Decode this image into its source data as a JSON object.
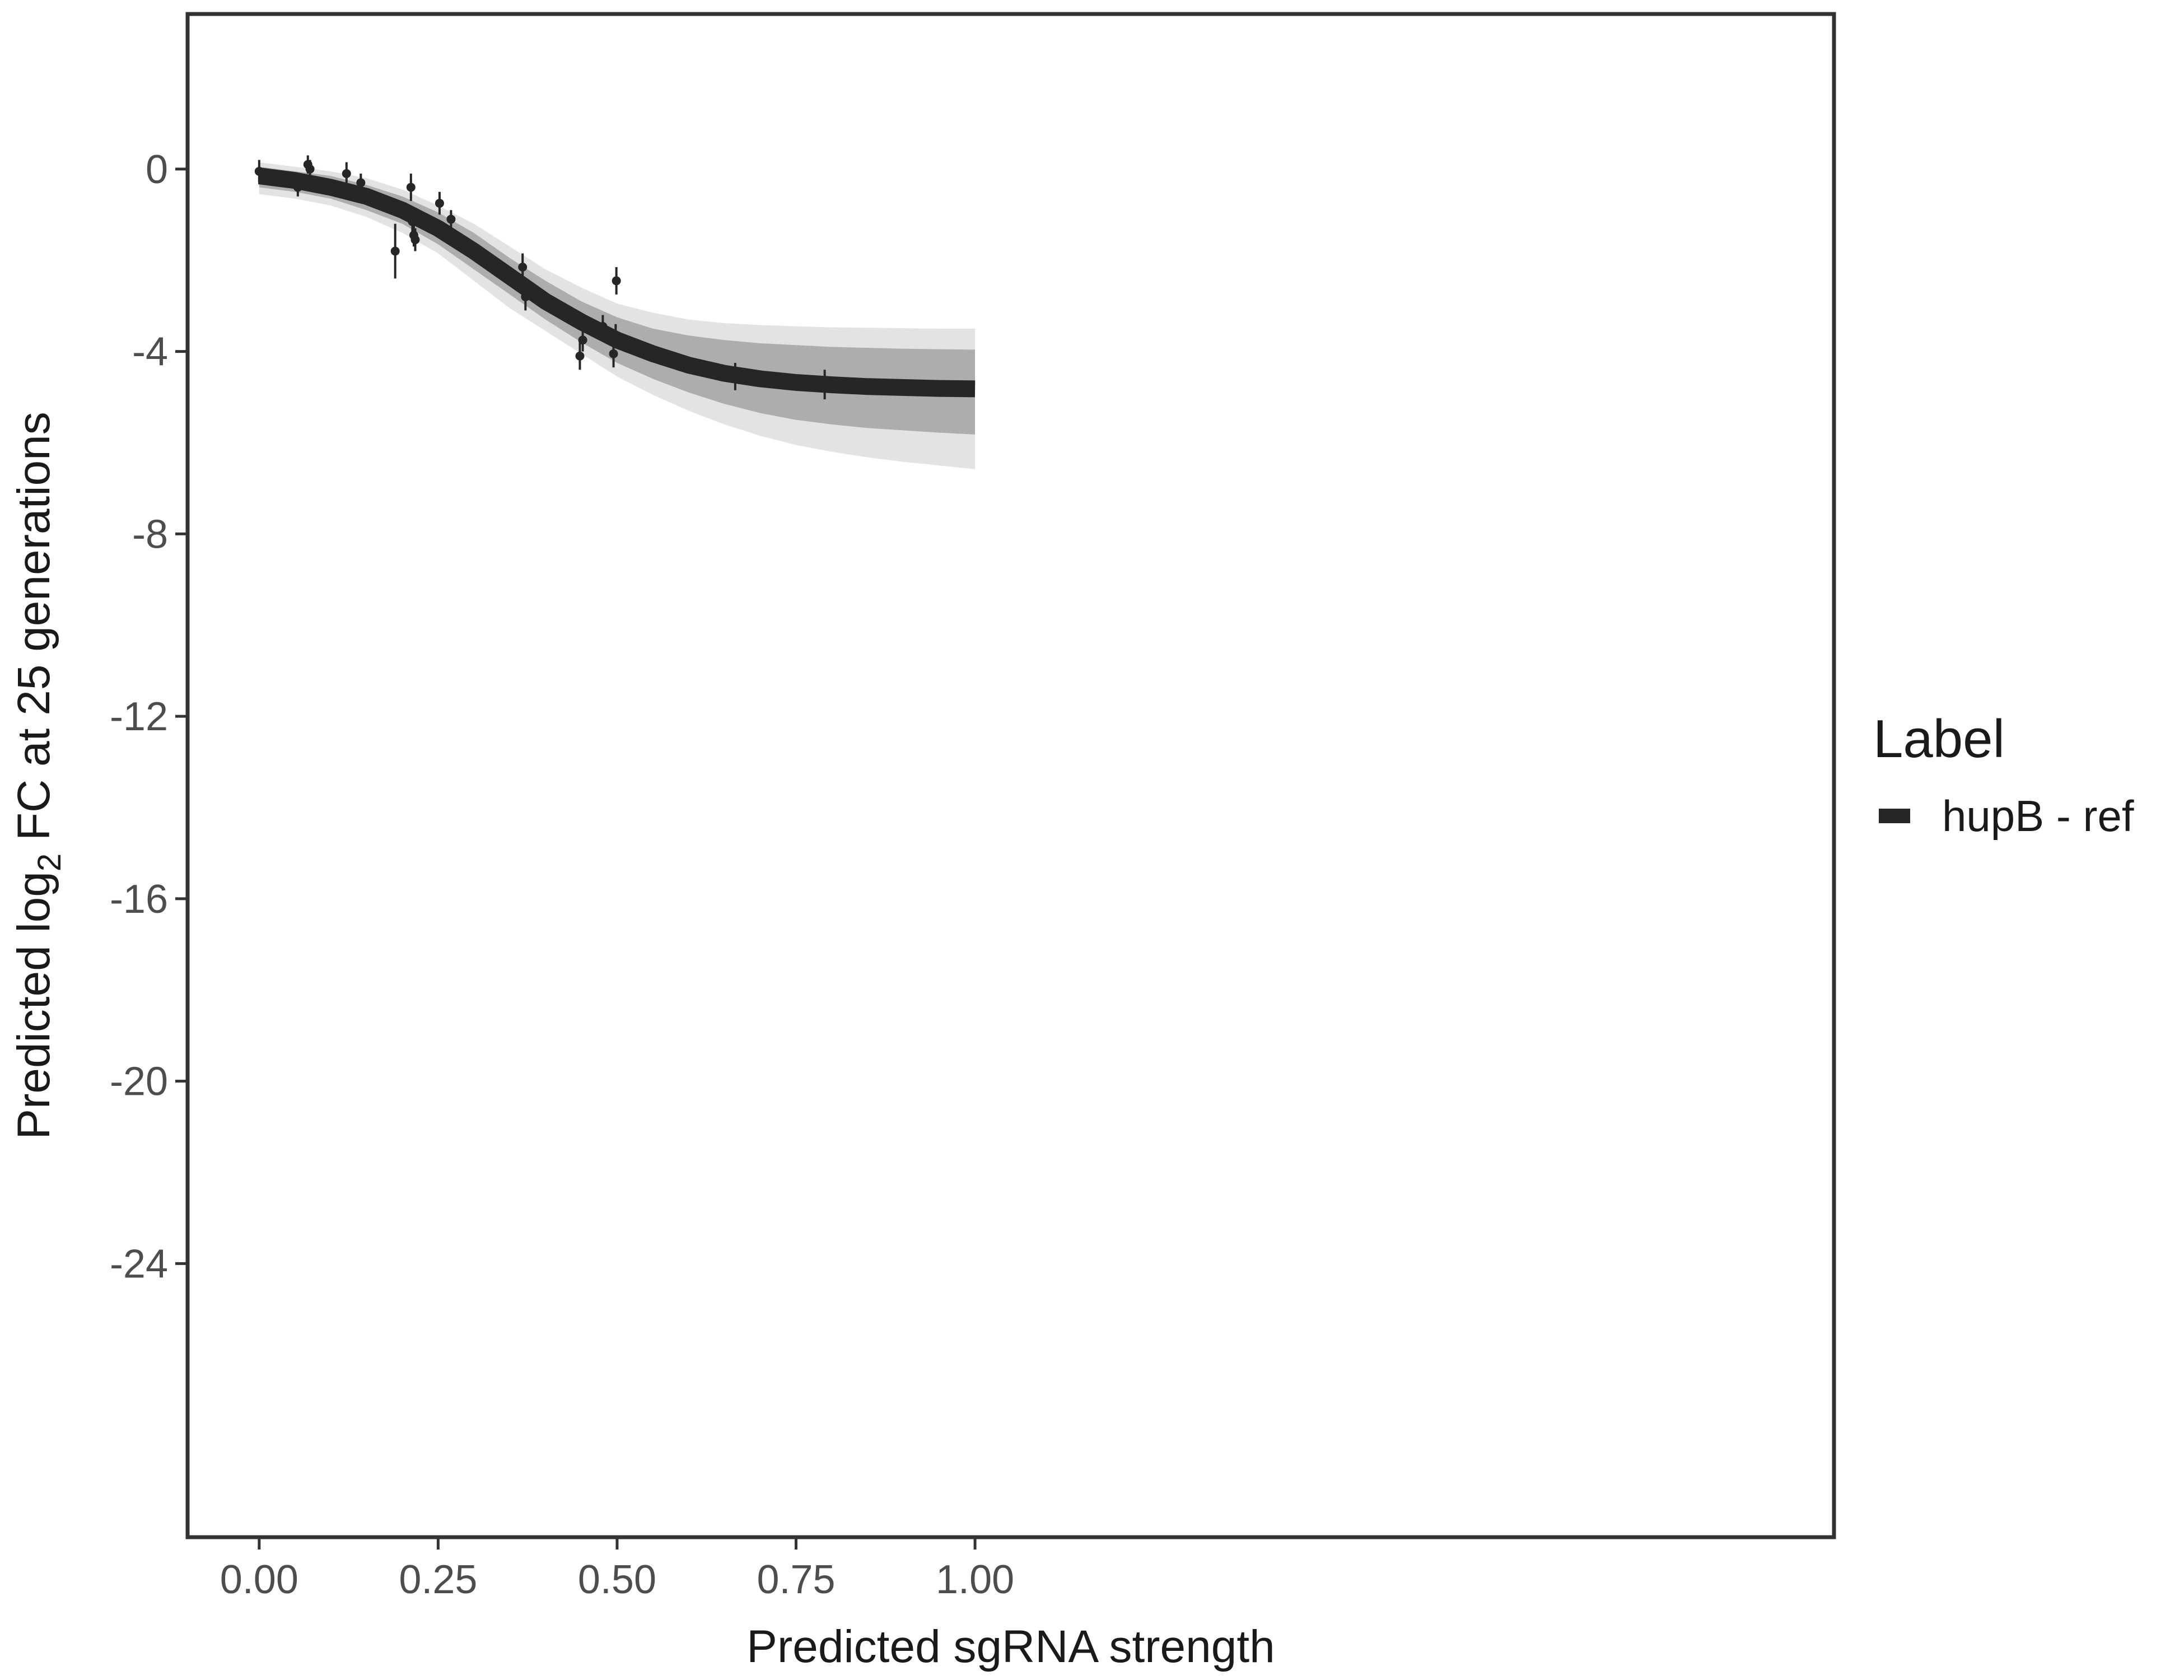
{
  "chart_data": {
    "type": "line",
    "title": "",
    "xlabel": "Predicted sgRNA strength",
    "ylabel_prefix": "Predicted  log",
    "ylabel_subscript": "2",
    "ylabel_suffix": " FC at 25 generations",
    "xlim": [
      -0.1,
      2.2
    ],
    "ylim": [
      -30.0,
      3.4
    ],
    "x_ticks": [
      0.0,
      0.25,
      0.5,
      0.75,
      1.0
    ],
    "x_tick_labels": [
      "0.00",
      "0.25",
      "0.50",
      "0.75",
      "1.00"
    ],
    "y_ticks": [
      0,
      -4,
      -8,
      -12,
      -16,
      -20,
      -24
    ],
    "y_tick_labels": [
      "0",
      "-4",
      "-8",
      "-12",
      "-16",
      "-20",
      "-24"
    ],
    "grid": false,
    "legend": {
      "title": "Label",
      "placement": "right",
      "entries": [
        {
          "label": "hupB - ref",
          "color": "#262626"
        }
      ]
    },
    "series": [
      {
        "name": "hupB - ref",
        "color": "#262626",
        "x": [
          0.0,
          0.05,
          0.1,
          0.15,
          0.2,
          0.25,
          0.3,
          0.35,
          0.4,
          0.45,
          0.5,
          0.55,
          0.6,
          0.65,
          0.7,
          0.75,
          0.8,
          0.85,
          0.9,
          0.95,
          1.0
        ],
        "y": [
          -0.15,
          -0.25,
          -0.4,
          -0.6,
          -0.9,
          -1.3,
          -1.8,
          -2.35,
          -2.9,
          -3.35,
          -3.75,
          -4.05,
          -4.3,
          -4.48,
          -4.6,
          -4.68,
          -4.73,
          -4.77,
          -4.79,
          -4.81,
          -4.82
        ]
      }
    ],
    "band": {
      "color": "#a6a6a6",
      "x": [
        0.0,
        0.05,
        0.1,
        0.15,
        0.2,
        0.25,
        0.3,
        0.35,
        0.4,
        0.45,
        0.5,
        0.55,
        0.6,
        0.65,
        0.7,
        0.75,
        0.8,
        0.85,
        0.9,
        0.95,
        1.0
      ],
      "lower": [
        -0.4,
        -0.5,
        -0.65,
        -0.9,
        -1.2,
        -1.65,
        -2.2,
        -2.75,
        -3.3,
        -3.8,
        -4.25,
        -4.6,
        -4.9,
        -5.15,
        -5.35,
        -5.5,
        -5.6,
        -5.68,
        -5.73,
        -5.78,
        -5.82
      ],
      "upper": [
        0.05,
        -0.05,
        -0.15,
        -0.35,
        -0.6,
        -0.95,
        -1.4,
        -1.95,
        -2.45,
        -2.9,
        -3.25,
        -3.5,
        -3.65,
        -3.75,
        -3.82,
        -3.86,
        -3.9,
        -3.92,
        -3.94,
        -3.95,
        -3.96
      ]
    },
    "envelope": {
      "color": "#d9d9d9",
      "x": [
        0.0,
        0.05,
        0.1,
        0.15,
        0.2,
        0.25,
        0.3,
        0.35,
        0.4,
        0.45,
        0.5,
        0.55,
        0.6,
        0.65,
        0.7,
        0.75,
        0.8,
        0.85,
        0.9,
        0.95,
        1.0
      ],
      "lower": [
        -0.55,
        -0.65,
        -0.8,
        -1.05,
        -1.4,
        -1.85,
        -2.45,
        -3.05,
        -3.55,
        -4.05,
        -4.55,
        -4.95,
        -5.3,
        -5.6,
        -5.85,
        -6.05,
        -6.2,
        -6.32,
        -6.42,
        -6.5,
        -6.58
      ],
      "upper": [
        0.15,
        0.05,
        -0.05,
        -0.2,
        -0.45,
        -0.8,
        -1.2,
        -1.7,
        -2.2,
        -2.6,
        -2.95,
        -3.15,
        -3.3,
        -3.38,
        -3.42,
        -3.45,
        -3.47,
        -3.48,
        -3.49,
        -3.5,
        -3.5
      ]
    },
    "points": [
      {
        "x": 0.0,
        "y": -0.05,
        "lo": -0.3,
        "hi": 0.2
      },
      {
        "x": 0.054,
        "y": -0.4,
        "lo": -0.6,
        "hi": -0.2
      },
      {
        "x": 0.068,
        "y": 0.1,
        "lo": -0.1,
        "hi": 0.3
      },
      {
        "x": 0.071,
        "y": 0.0,
        "lo": -0.2,
        "hi": 0.2
      },
      {
        "x": 0.122,
        "y": -0.1,
        "lo": -0.3,
        "hi": 0.15
      },
      {
        "x": 0.142,
        "y": -0.3,
        "lo": -0.5,
        "hi": -0.1
      },
      {
        "x": 0.19,
        "y": -1.8,
        "lo": -2.4,
        "hi": -1.2
      },
      {
        "x": 0.212,
        "y": -0.4,
        "lo": -0.7,
        "hi": -0.1
      },
      {
        "x": 0.214,
        "y": -1.15,
        "lo": -1.45,
        "hi": -0.85
      },
      {
        "x": 0.216,
        "y": -1.45,
        "lo": -1.7,
        "hi": -1.2
      },
      {
        "x": 0.218,
        "y": -1.55,
        "lo": -1.8,
        "hi": -1.3
      },
      {
        "x": 0.252,
        "y": -0.75,
        "lo": -1.0,
        "hi": -0.5
      },
      {
        "x": 0.268,
        "y": -1.1,
        "lo": -1.3,
        "hi": -0.9
      },
      {
        "x": 0.368,
        "y": -2.15,
        "lo": -2.45,
        "hi": -1.85
      },
      {
        "x": 0.372,
        "y": -2.8,
        "lo": -3.1,
        "hi": -2.5
      },
      {
        "x": 0.448,
        "y": -4.1,
        "lo": -4.4,
        "hi": -3.8
      },
      {
        "x": 0.452,
        "y": -3.75,
        "lo": -4.0,
        "hi": -3.5
      },
      {
        "x": 0.48,
        "y": -3.45,
        "lo": -3.7,
        "hi": -3.2
      },
      {
        "x": 0.495,
        "y": -4.05,
        "lo": -4.35,
        "hi": -3.75
      },
      {
        "x": 0.498,
        "y": -3.65,
        "lo": -3.9,
        "hi": -3.4
      },
      {
        "x": 0.499,
        "y": -2.45,
        "lo": -2.75,
        "hi": -2.15
      },
      {
        "x": 0.665,
        "y": -4.55,
        "lo": -4.85,
        "hi": -4.25
      },
      {
        "x": 0.79,
        "y": -4.75,
        "lo": -5.05,
        "hi": -4.4
      }
    ]
  }
}
